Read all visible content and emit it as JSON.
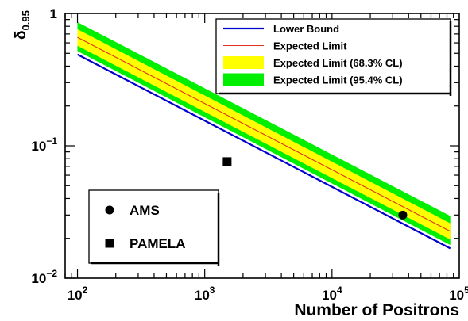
{
  "chart_data": {
    "type": "line",
    "x_scale": "log",
    "y_scale": "log",
    "xlim": [
      80,
      100000
    ],
    "ylim": [
      0.01,
      1
    ],
    "xlabel": "Number of Positrons",
    "ylabel": "δ",
    "ylabel_sub": "0.95",
    "x_ticks": [
      {
        "value": 100,
        "base": "10",
        "exp": "2"
      },
      {
        "value": 1000,
        "base": "10",
        "exp": "3"
      },
      {
        "value": 10000,
        "base": "10",
        "exp": "4"
      },
      {
        "value": 100000,
        "base": "10",
        "exp": "5"
      }
    ],
    "y_ticks": [
      {
        "value": 0.01,
        "base": "10",
        "exp": "−2"
      },
      {
        "value": 0.1,
        "base": "10",
        "exp": "−1"
      },
      {
        "value": 1,
        "label": "1"
      }
    ],
    "x_range": [
      100,
      85000
    ],
    "series": [
      {
        "name": "Lower Bound",
        "color": "#0000cc",
        "x": [
          100,
          85000
        ],
        "y": [
          0.49,
          0.0168
        ]
      },
      {
        "name": "Expected Limit",
        "color": "#e03020",
        "x": [
          100,
          85000
        ],
        "y": [
          0.66,
          0.0226
        ]
      }
    ],
    "bands": [
      {
        "name": "Expected Limit (68.3% CL)",
        "color": "#ffff00",
        "x": [
          100,
          85000
        ],
        "y_low": [
          0.57,
          0.0196
        ],
        "y_high": [
          0.76,
          0.026
        ]
      },
      {
        "name": "Expected Limit (95.4% CL)",
        "color": "#00ee00",
        "x": [
          100,
          85000
        ],
        "y_low": [
          0.52,
          0.0178
        ],
        "y_high": [
          0.86,
          0.0295
        ]
      }
    ],
    "points": [
      {
        "name": "AMS",
        "marker": "circle",
        "x": 36000,
        "y": 0.03
      },
      {
        "name": "PAMELA",
        "marker": "square",
        "x": 1500,
        "y": 0.076
      }
    ],
    "legend_limits": {
      "placement": "top-right",
      "entries": [
        "Lower Bound",
        "Expected Limit",
        "Expected Limit (68.3% CL)",
        "Expected Limit (95.4% CL)"
      ]
    },
    "legend_experiments": {
      "placement": "bottom-left",
      "entries": [
        "AMS",
        "PAMELA"
      ]
    }
  }
}
